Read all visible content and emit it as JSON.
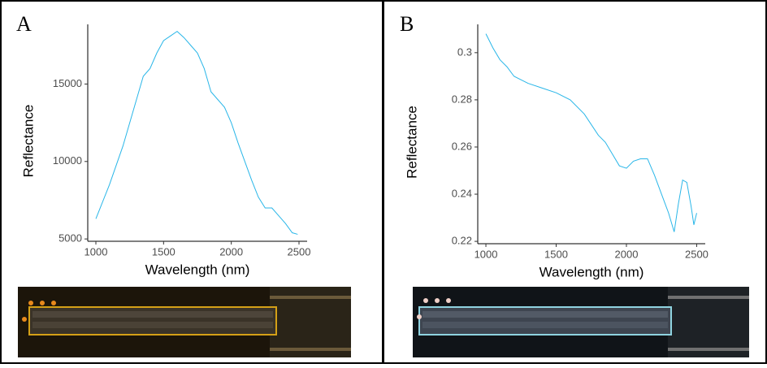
{
  "chart_data": [
    {
      "type": "line",
      "panel_label": "A",
      "x_label": "Wavelength (nm)",
      "y_label": "Reflectance",
      "x": [
        1000,
        1100,
        1200,
        1300,
        1350,
        1400,
        1450,
        1500,
        1550,
        1600,
        1650,
        1700,
        1750,
        1800,
        1850,
        1900,
        1950,
        2000,
        2050,
        2100,
        2150,
        2200,
        2250,
        2300,
        2350,
        2400,
        2450,
        2490
      ],
      "series": [
        {
          "color": "#29b6e8",
          "values": [
            6300,
            8500,
            11000,
            14000,
            15500,
            16000,
            17000,
            17800,
            18100,
            18400,
            18000,
            17500,
            17000,
            16000,
            14500,
            14000,
            13500,
            12500,
            11200,
            10000,
            8800,
            7700,
            7000,
            7000,
            6500,
            6000,
            5400,
            5300
          ]
        }
      ],
      "xlim": [
        940,
        2560
      ],
      "ylim": [
        4850,
        18850
      ],
      "xticks": [
        1000,
        1500,
        2000,
        2500
      ],
      "yticks": [
        5000,
        10000,
        15000
      ]
    },
    {
      "type": "line",
      "panel_label": "B",
      "x_label": "Wavelength (nm)",
      "y_label": "Reflectance",
      "x": [
        1000,
        1050,
        1100,
        1150,
        1200,
        1300,
        1400,
        1500,
        1600,
        1700,
        1800,
        1850,
        1900,
        1950,
        2000,
        2050,
        2100,
        2150,
        2200,
        2250,
        2300,
        2340,
        2370,
        2400,
        2430,
        2460,
        2480,
        2500
      ],
      "series": [
        {
          "color": "#29b6e8",
          "values": [
            0.308,
            0.302,
            0.297,
            0.294,
            0.29,
            0.287,
            0.285,
            0.283,
            0.28,
            0.274,
            0.265,
            0.262,
            0.257,
            0.252,
            0.251,
            0.254,
            0.255,
            0.255,
            0.248,
            0.24,
            0.232,
            0.224,
            0.236,
            0.246,
            0.245,
            0.235,
            0.227,
            0.232
          ]
        }
      ],
      "xlim": [
        942,
        2561
      ],
      "ylim": [
        0.219,
        0.312
      ],
      "xticks": [
        1000,
        1500,
        2000,
        2500
      ],
      "yticks": [
        0.22,
        0.24,
        0.26,
        0.28,
        0.3
      ]
    }
  ]
}
